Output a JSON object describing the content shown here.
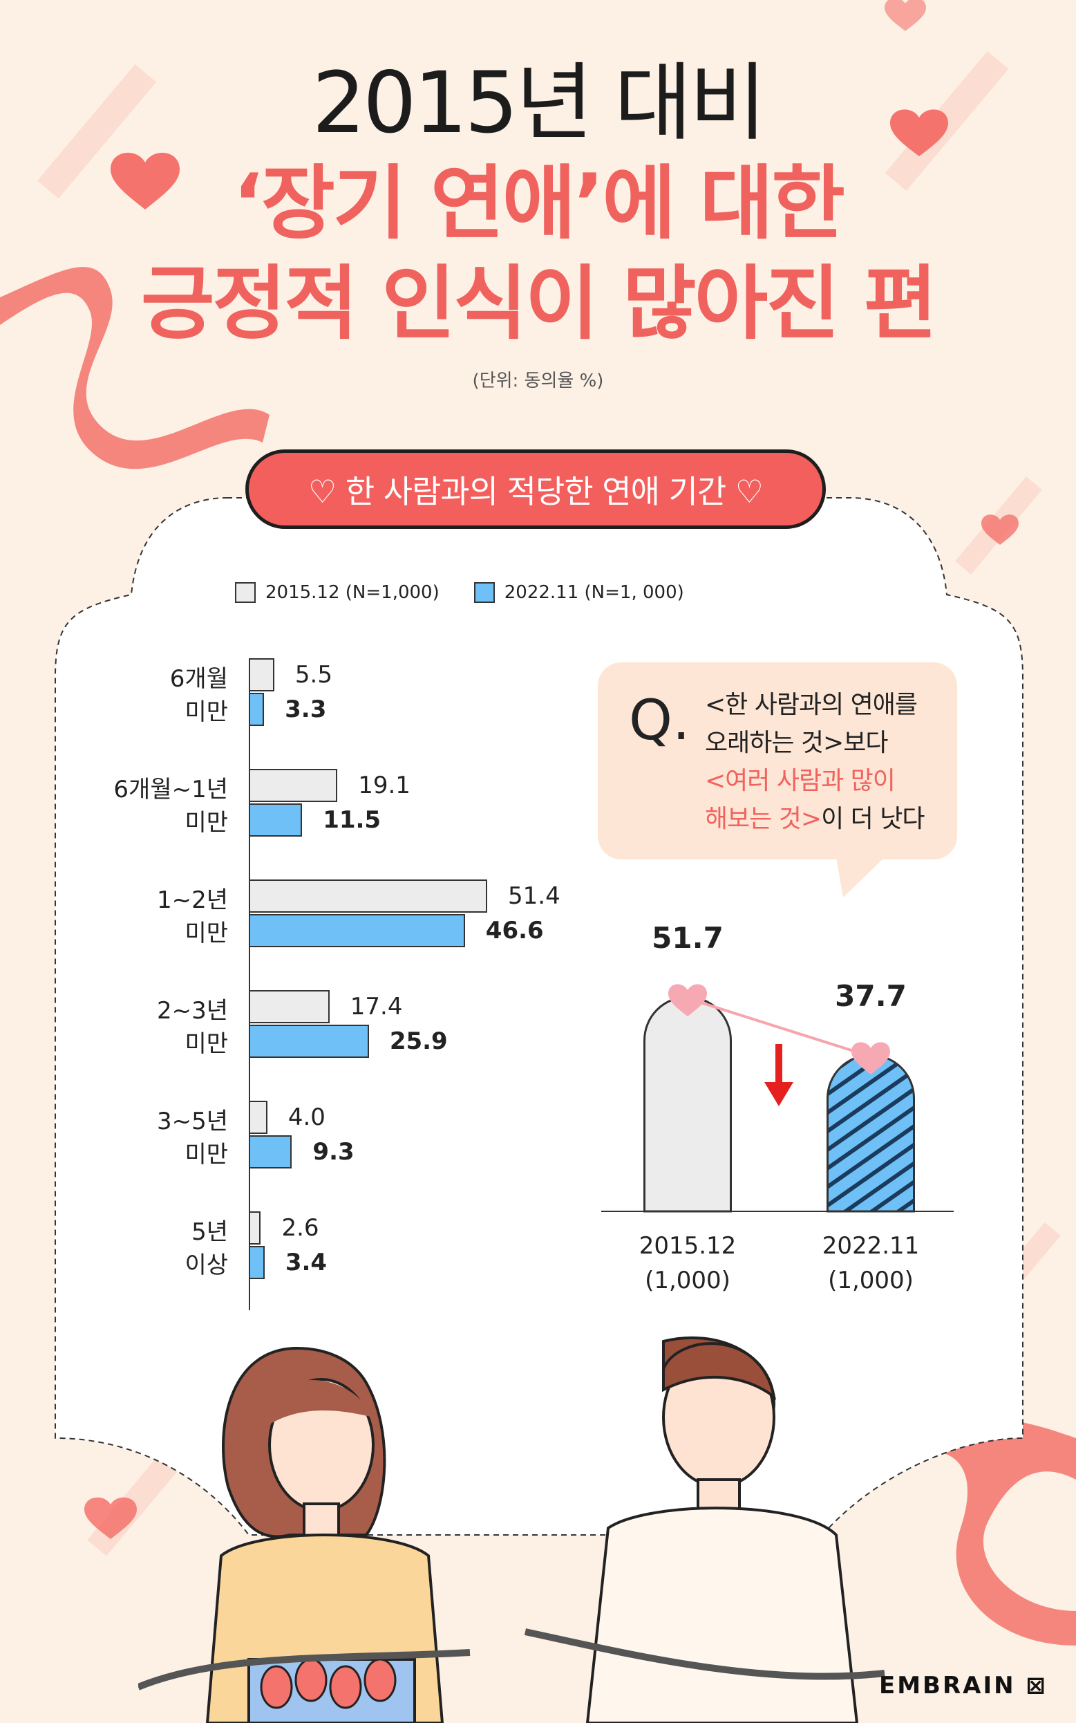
{
  "header": {
    "title_line1": "2015년 대비",
    "title_line2": "‘장기 연애’에 대한",
    "title_line3": "긍정적 인식이 많아진 편",
    "unit": "(단위: 동의율 %)"
  },
  "section_pill": "♡ 한 사람과의 적당한 연애 기간 ♡",
  "colors": {
    "accent": "#f0625d",
    "series_2015": "#ececec",
    "series_2022": "#6ec0f7"
  },
  "chart_data": [
    {
      "type": "bar",
      "orientation": "horizontal",
      "title": "한 사람과의 적당한 연애 기간",
      "categories": [
        [
          "6개월",
          "미만"
        ],
        [
          "6개월~1년",
          "미만"
        ],
        [
          "1~2년",
          "미만"
        ],
        [
          "2~3년",
          "미만"
        ],
        [
          "3~5년",
          "미만"
        ],
        [
          "5년",
          "이상"
        ]
      ],
      "series": [
        {
          "name": "2015.12 (N=1,000)",
          "values": [
            5.5,
            19.1,
            51.4,
            17.4,
            4.0,
            2.6
          ],
          "value_labels": [
            "5.5",
            "19.1",
            "51.4",
            "17.4",
            "4.0",
            "2.6"
          ]
        },
        {
          "name": "2022.11 (N=1, 000)",
          "values": [
            3.3,
            11.5,
            46.6,
            25.9,
            9.3,
            3.4
          ],
          "value_labels": [
            "3.3",
            "11.5",
            "46.6",
            "25.9",
            "9.3",
            "3.4"
          ]
        }
      ],
      "xlim": [
        0,
        60
      ],
      "legend": "top"
    },
    {
      "type": "bar",
      "question": {
        "mark": "Q.",
        "lines": [
          "<한 사람과의 연애를",
          "오래하는 것>보다",
          "<여러 사람과 많이",
          "해보는 것>이 더 낫다"
        ]
      },
      "categories": [
        [
          "2015.12",
          "(1,000)"
        ],
        [
          "2022.11",
          "(1,000)"
        ]
      ],
      "values": [
        51.7,
        37.7
      ],
      "value_labels": [
        "51.7",
        "37.7"
      ],
      "ylim": [
        0,
        60
      ],
      "trend": "down"
    }
  ],
  "brand": "EMBRAIN"
}
